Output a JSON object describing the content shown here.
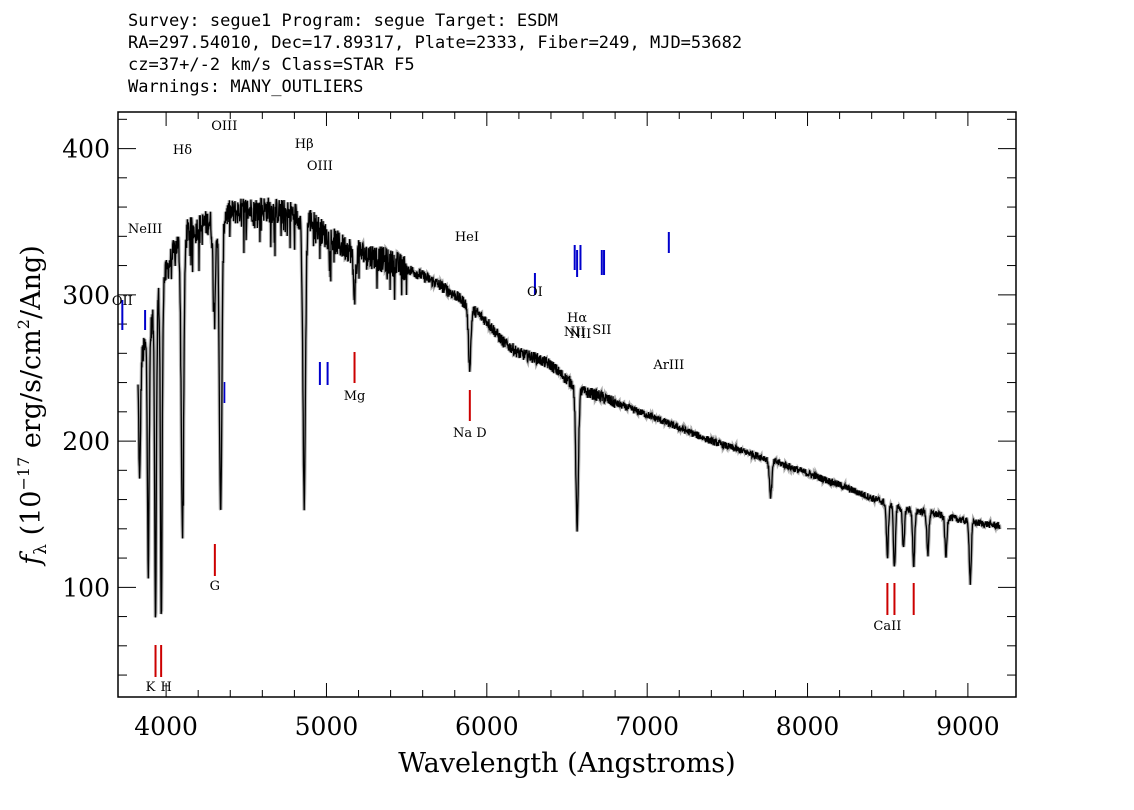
{
  "header": {
    "line1": "Survey: segue1 Program: segue Target: ESDM",
    "line2": "RA=297.54010, Dec=17.89317, Plate=2333, Fiber=249, MJD=53682",
    "line3": "cz=37+/-2 km/s Class=STAR F5",
    "line4": "Warnings: MANY_OUTLIERS"
  },
  "chart_data": {
    "type": "line",
    "title": "",
    "xlabel": "Wavelength (Angstroms)",
    "ylabel": "f_λ (10^-17 erg/s/cm^2/Ang)",
    "xlim": [
      3700,
      9300
    ],
    "ylim": [
      25,
      425
    ],
    "x_ticks": [
      4000,
      5000,
      6000,
      7000,
      8000,
      9000
    ],
    "y_ticks": [
      100,
      200,
      300,
      400
    ],
    "grid": false,
    "line_color": "#000000",
    "continuum_points": [
      [
        3825,
        250
      ],
      [
        3900,
        275
      ],
      [
        3950,
        300
      ],
      [
        4000,
        315
      ],
      [
        4050,
        330
      ],
      [
        4100,
        342
      ],
      [
        4200,
        346
      ],
      [
        4300,
        352
      ],
      [
        4400,
        356
      ],
      [
        4500,
        358
      ],
      [
        4600,
        359
      ],
      [
        4700,
        357
      ],
      [
        4800,
        355
      ],
      [
        4900,
        351
      ],
      [
        5000,
        340
      ],
      [
        5100,
        333
      ],
      [
        5200,
        329
      ],
      [
        5300,
        326
      ],
      [
        5400,
        322
      ],
      [
        5500,
        318
      ],
      [
        5600,
        313
      ],
      [
        5700,
        307
      ],
      [
        5800,
        300
      ],
      [
        5900,
        291
      ],
      [
        6000,
        282
      ],
      [
        6100,
        268
      ],
      [
        6200,
        260
      ],
      [
        6300,
        257
      ],
      [
        6400,
        252
      ],
      [
        6500,
        242
      ],
      [
        6600,
        234
      ],
      [
        6700,
        231
      ],
      [
        6800,
        226
      ],
      [
        7000,
        218
      ],
      [
        7200,
        209
      ],
      [
        7400,
        200
      ],
      [
        7600,
        193
      ],
      [
        7800,
        186
      ],
      [
        8000,
        178
      ],
      [
        8200,
        170
      ],
      [
        8400,
        161
      ],
      [
        8600,
        154
      ],
      [
        8800,
        150
      ],
      [
        9000,
        145
      ],
      [
        9200,
        142
      ]
    ],
    "absorption_features": [
      {
        "wavelength": 3835,
        "min_flux": 170
      },
      {
        "wavelength": 3889,
        "min_flux": 110
      },
      {
        "wavelength": 3934,
        "min_flux": 75
      },
      {
        "wavelength": 3970,
        "min_flux": 68
      },
      {
        "wavelength": 4102,
        "min_flux": 135
      },
      {
        "wavelength": 4300,
        "min_flux": 290
      },
      {
        "wavelength": 4340,
        "min_flux": 142
      },
      {
        "wavelength": 4861,
        "min_flux": 152
      },
      {
        "wavelength": 5175,
        "min_flux": 300
      },
      {
        "wavelength": 5893,
        "min_flux": 250
      },
      {
        "wavelength": 6563,
        "min_flux": 137
      },
      {
        "wavelength": 7770,
        "min_flux": 162
      },
      {
        "wavelength": 8498,
        "min_flux": 120
      },
      {
        "wavelength": 8542,
        "min_flux": 112
      },
      {
        "wavelength": 8598,
        "min_flux": 125
      },
      {
        "wavelength": 8662,
        "min_flux": 112
      },
      {
        "wavelength": 8750,
        "min_flux": 122
      },
      {
        "wavelength": 8863,
        "min_flux": 120
      },
      {
        "wavelength": 9015,
        "min_flux": 103
      }
    ],
    "emission_lines": [
      {
        "label": "OII",
        "wavelength": 3727,
        "color": "#0000cc"
      },
      {
        "label": "NeIII",
        "wavelength": 3869,
        "color": "#0000cc"
      },
      {
        "label": "Hδ",
        "wavelength": 4102,
        "color": "#0000cc"
      },
      {
        "label": "OIII",
        "wavelength": 4363,
        "color": "#0000cc"
      },
      {
        "label": "Hβ",
        "wavelength": 4861,
        "color": "#0000cc"
      },
      {
        "label": "OIII",
        "wavelength": 4959,
        "color": "#0000cc"
      },
      {
        "label": "",
        "wavelength": 5007,
        "color": "#0000cc"
      },
      {
        "label": "HeI",
        "wavelength": 5876,
        "color": "#0000cc"
      },
      {
        "label": "OI",
        "wavelength": 6300,
        "color": "#0000cc"
      },
      {
        "label": "NII",
        "wavelength": 6548,
        "color": "#0000cc"
      },
      {
        "label": "Hα",
        "wavelength": 6563,
        "color": "#0000cc"
      },
      {
        "label": "NII",
        "wavelength": 6584,
        "color": "#0000cc"
      },
      {
        "label": "SII",
        "wavelength": 6717,
        "color": "#0000cc"
      },
      {
        "label": "",
        "wavelength": 6731,
        "color": "#0000cc"
      },
      {
        "label": "ArIII",
        "wavelength": 7135,
        "color": "#0000cc"
      }
    ],
    "absorption_markers": [
      {
        "label": "K",
        "wavelength": 3934,
        "color": "#cc0000"
      },
      {
        "label": "H",
        "wavelength": 3969,
        "color": "#cc0000"
      },
      {
        "label": "G",
        "wavelength": 4304,
        "color": "#cc0000"
      },
      {
        "label": "Mg",
        "wavelength": 5175,
        "color": "#cc0000"
      },
      {
        "label": "Na D",
        "wavelength": 5894,
        "color": "#cc0000"
      },
      {
        "label": "CaII",
        "wavelength": 8498,
        "color": "#cc0000"
      },
      {
        "label": "",
        "wavelength": 8542,
        "color": "#cc0000"
      },
      {
        "label": "",
        "wavelength": 8662,
        "color": "#cc0000"
      }
    ]
  }
}
